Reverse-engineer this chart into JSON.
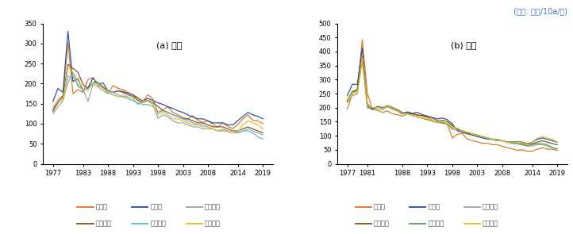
{
  "title_unit": "(단위: 시간/10a/연)",
  "subtitle_a": "(a) 남자",
  "subtitle_b": "(b) 여자",
  "years_a": [
    1977,
    1978,
    1979,
    1980,
    1981,
    1982,
    1983,
    1984,
    1985,
    1986,
    1987,
    1988,
    1989,
    1990,
    1991,
    1992,
    1993,
    1994,
    1995,
    1996,
    1997,
    1998,
    1999,
    2000,
    2001,
    2002,
    2003,
    2004,
    2005,
    2006,
    2007,
    2008,
    2009,
    2010,
    2011,
    2012,
    2013,
    2014,
    2015,
    2016,
    2017,
    2018,
    2019
  ],
  "years_b": [
    1977,
    1978,
    1979,
    1980,
    1981,
    1982,
    1983,
    1984,
    1985,
    1986,
    1987,
    1988,
    1989,
    1990,
    1991,
    1992,
    1993,
    1994,
    1995,
    1996,
    1997,
    1998,
    1999,
    2000,
    2001,
    2002,
    2003,
    2004,
    2005,
    2006,
    2007,
    2008,
    2009,
    2010,
    2011,
    2012,
    2013,
    2014,
    2015,
    2016,
    2017,
    2018,
    2019
  ],
  "series_a": {
    "강원도": [
      130,
      160,
      170,
      302,
      175,
      185,
      178,
      210,
      215,
      195,
      190,
      175,
      195,
      188,
      185,
      178,
      172,
      165,
      155,
      172,
      162,
      128,
      135,
      142,
      128,
      122,
      115,
      112,
      120,
      108,
      103,
      107,
      98,
      92,
      102,
      93,
      88,
      98,
      112,
      122,
      108,
      107,
      100
    ],
    "경기도": [
      155,
      188,
      178,
      330,
      205,
      212,
      182,
      190,
      214,
      198,
      202,
      182,
      178,
      182,
      180,
      176,
      172,
      162,
      157,
      163,
      158,
      152,
      148,
      142,
      138,
      132,
      128,
      122,
      117,
      112,
      112,
      107,
      102,
      102,
      102,
      97,
      97,
      108,
      118,
      128,
      122,
      118,
      112
    ],
    "경상남도": [
      125,
      142,
      158,
      202,
      228,
      192,
      187,
      155,
      198,
      192,
      182,
      176,
      172,
      168,
      167,
      167,
      162,
      148,
      157,
      158,
      148,
      113,
      122,
      117,
      107,
      102,
      102,
      97,
      92,
      92,
      87,
      87,
      87,
      82,
      87,
      82,
      77,
      77,
      82,
      87,
      82,
      77,
      72
    ],
    "경상북도": [
      132,
      152,
      168,
      248,
      238,
      228,
      198,
      188,
      203,
      203,
      192,
      182,
      178,
      182,
      178,
      172,
      168,
      158,
      152,
      158,
      152,
      143,
      133,
      128,
      122,
      118,
      112,
      112,
      107,
      102,
      102,
      97,
      92,
      92,
      92,
      87,
      82,
      82,
      87,
      92,
      87,
      82,
      77
    ],
    "전라남도": [
      138,
      158,
      163,
      218,
      218,
      198,
      183,
      188,
      198,
      203,
      188,
      183,
      178,
      172,
      167,
      162,
      157,
      152,
      148,
      148,
      143,
      128,
      132,
      128,
      122,
      118,
      112,
      107,
      102,
      97,
      97,
      92,
      87,
      82,
      82,
      82,
      77,
      77,
      82,
      82,
      77,
      67,
      62
    ],
    "전라북도": [
      142,
      158,
      158,
      242,
      228,
      208,
      188,
      183,
      203,
      198,
      188,
      178,
      172,
      167,
      172,
      167,
      162,
      162,
      152,
      157,
      148,
      122,
      128,
      122,
      112,
      112,
      107,
      102,
      97,
      97,
      92,
      92,
      87,
      82,
      82,
      80,
      77,
      80,
      97,
      107,
      102,
      97,
      87
    ]
  },
  "series_b": {
    "강원도": [
      195,
      248,
      268,
      442,
      252,
      195,
      190,
      183,
      188,
      178,
      175,
      170,
      178,
      178,
      175,
      170,
      165,
      155,
      148,
      145,
      142,
      92,
      105,
      108,
      88,
      83,
      78,
      73,
      73,
      68,
      68,
      62,
      58,
      53,
      48,
      50,
      45,
      45,
      52,
      57,
      52,
      52,
      48
    ],
    "경기도": [
      243,
      283,
      283,
      413,
      205,
      193,
      205,
      200,
      205,
      195,
      188,
      178,
      185,
      180,
      183,
      175,
      170,
      165,
      160,
      163,
      157,
      142,
      118,
      112,
      107,
      102,
      97,
      92,
      88,
      87,
      82,
      82,
      78,
      77,
      78,
      77,
      72,
      77,
      87,
      92,
      87,
      82,
      77
    ],
    "경상남도": [
      218,
      243,
      248,
      368,
      198,
      200,
      195,
      192,
      202,
      197,
      188,
      182,
      178,
      172,
      168,
      163,
      158,
      152,
      147,
      147,
      142,
      122,
      122,
      117,
      112,
      107,
      102,
      97,
      92,
      87,
      82,
      82,
      77,
      73,
      72,
      68,
      63,
      63,
      68,
      68,
      63,
      58,
      53
    ],
    "경상북도": [
      222,
      258,
      263,
      383,
      215,
      195,
      202,
      198,
      208,
      198,
      193,
      183,
      183,
      178,
      173,
      172,
      168,
      163,
      153,
      155,
      150,
      137,
      122,
      118,
      107,
      107,
      102,
      97,
      92,
      88,
      87,
      82,
      77,
      77,
      78,
      73,
      70,
      72,
      77,
      82,
      77,
      72,
      68
    ],
    "전라남도": [
      228,
      258,
      258,
      373,
      210,
      198,
      202,
      197,
      207,
      202,
      192,
      182,
      182,
      172,
      167,
      162,
      157,
      152,
      147,
      147,
      142,
      127,
      127,
      117,
      112,
      107,
      102,
      97,
      92,
      87,
      87,
      82,
      77,
      73,
      72,
      68,
      65,
      68,
      72,
      72,
      68,
      58,
      53
    ],
    "전라북도": [
      228,
      252,
      252,
      378,
      210,
      200,
      202,
      197,
      207,
      197,
      188,
      182,
      177,
      172,
      168,
      163,
      160,
      153,
      148,
      150,
      144,
      132,
      125,
      118,
      112,
      107,
      102,
      97,
      92,
      88,
      85,
      82,
      77,
      75,
      77,
      75,
      72,
      77,
      92,
      97,
      92,
      87,
      77
    ]
  },
  "colors": {
    "강원도": "#e07020",
    "경기도": "#1f4e9f",
    "경상남도": "#a0a0a0",
    "경상북도": "#7f4f20",
    "전라남도": "#5ab4e0",
    "전라북도": "#e0c020"
  },
  "colors_b": {
    "강원도": "#e07020",
    "경기도": "#1f4e9f",
    "경상남도": "#a0a0a0",
    "경상북도": "#7f4f20",
    "전라남도": "#4f9f4f",
    "전라북도": "#e0c020"
  },
  "ylim_a": [
    0,
    350
  ],
  "ylim_b": [
    0,
    500
  ],
  "yticks_a": [
    0,
    50,
    100,
    150,
    200,
    250,
    300,
    350
  ],
  "yticks_b": [
    0,
    50,
    100,
    150,
    200,
    250,
    300,
    350,
    400,
    450,
    500
  ],
  "xticks_a": [
    1977,
    1983,
    1988,
    1993,
    1998,
    2003,
    2008,
    2014,
    2019
  ],
  "xticks_b": [
    1977,
    1981,
    1988,
    1993,
    1998,
    2003,
    2008,
    2014,
    2019
  ],
  "legend_a_row1": [
    "강원도",
    "경기도",
    "경상남도"
  ],
  "legend_a_row2": [
    "경상북도",
    "전라남도",
    "전라북도"
  ],
  "legend_b_row1": [
    "강원도",
    "경기도",
    "경상남도"
  ],
  "legend_b_row2": [
    "경상북도",
    "전라남도",
    "전라북도"
  ]
}
